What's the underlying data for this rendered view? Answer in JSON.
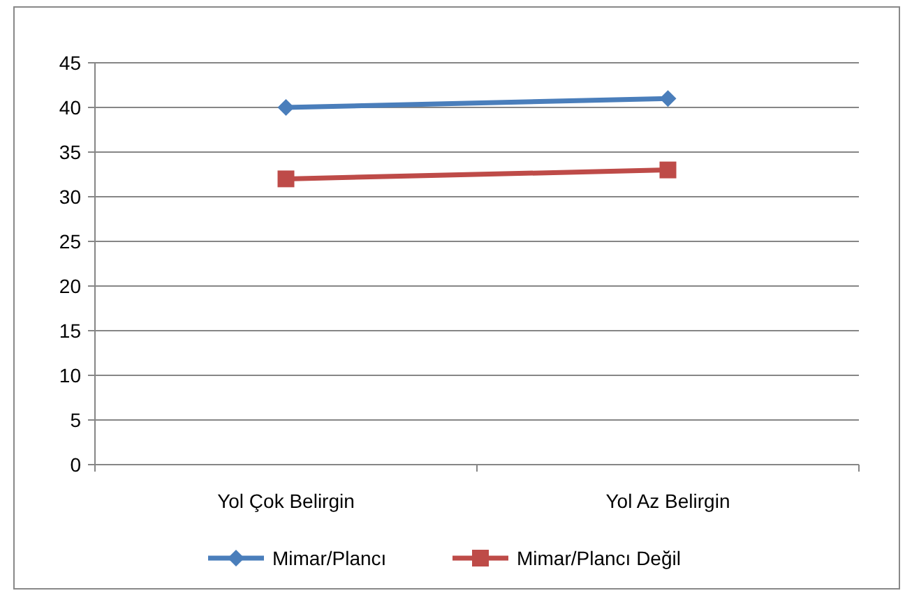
{
  "chart_data": {
    "type": "line",
    "categories": [
      "Yol Çok Belirgin",
      "Yol Az Belirgin"
    ],
    "series": [
      {
        "name": "Mimar/Plancı",
        "color": "#4a7ebb",
        "values": [
          40,
          41
        ],
        "marker": "diamond"
      },
      {
        "name": "Mimar/Plancı Değil",
        "color": "#be4b48",
        "values": [
          32,
          33
        ],
        "marker": "square"
      }
    ],
    "ylim": [
      0,
      45
    ],
    "yticks": [
      0,
      5,
      10,
      15,
      20,
      25,
      30,
      35,
      40,
      45
    ],
    "grid": "y",
    "legend": "bottom"
  }
}
